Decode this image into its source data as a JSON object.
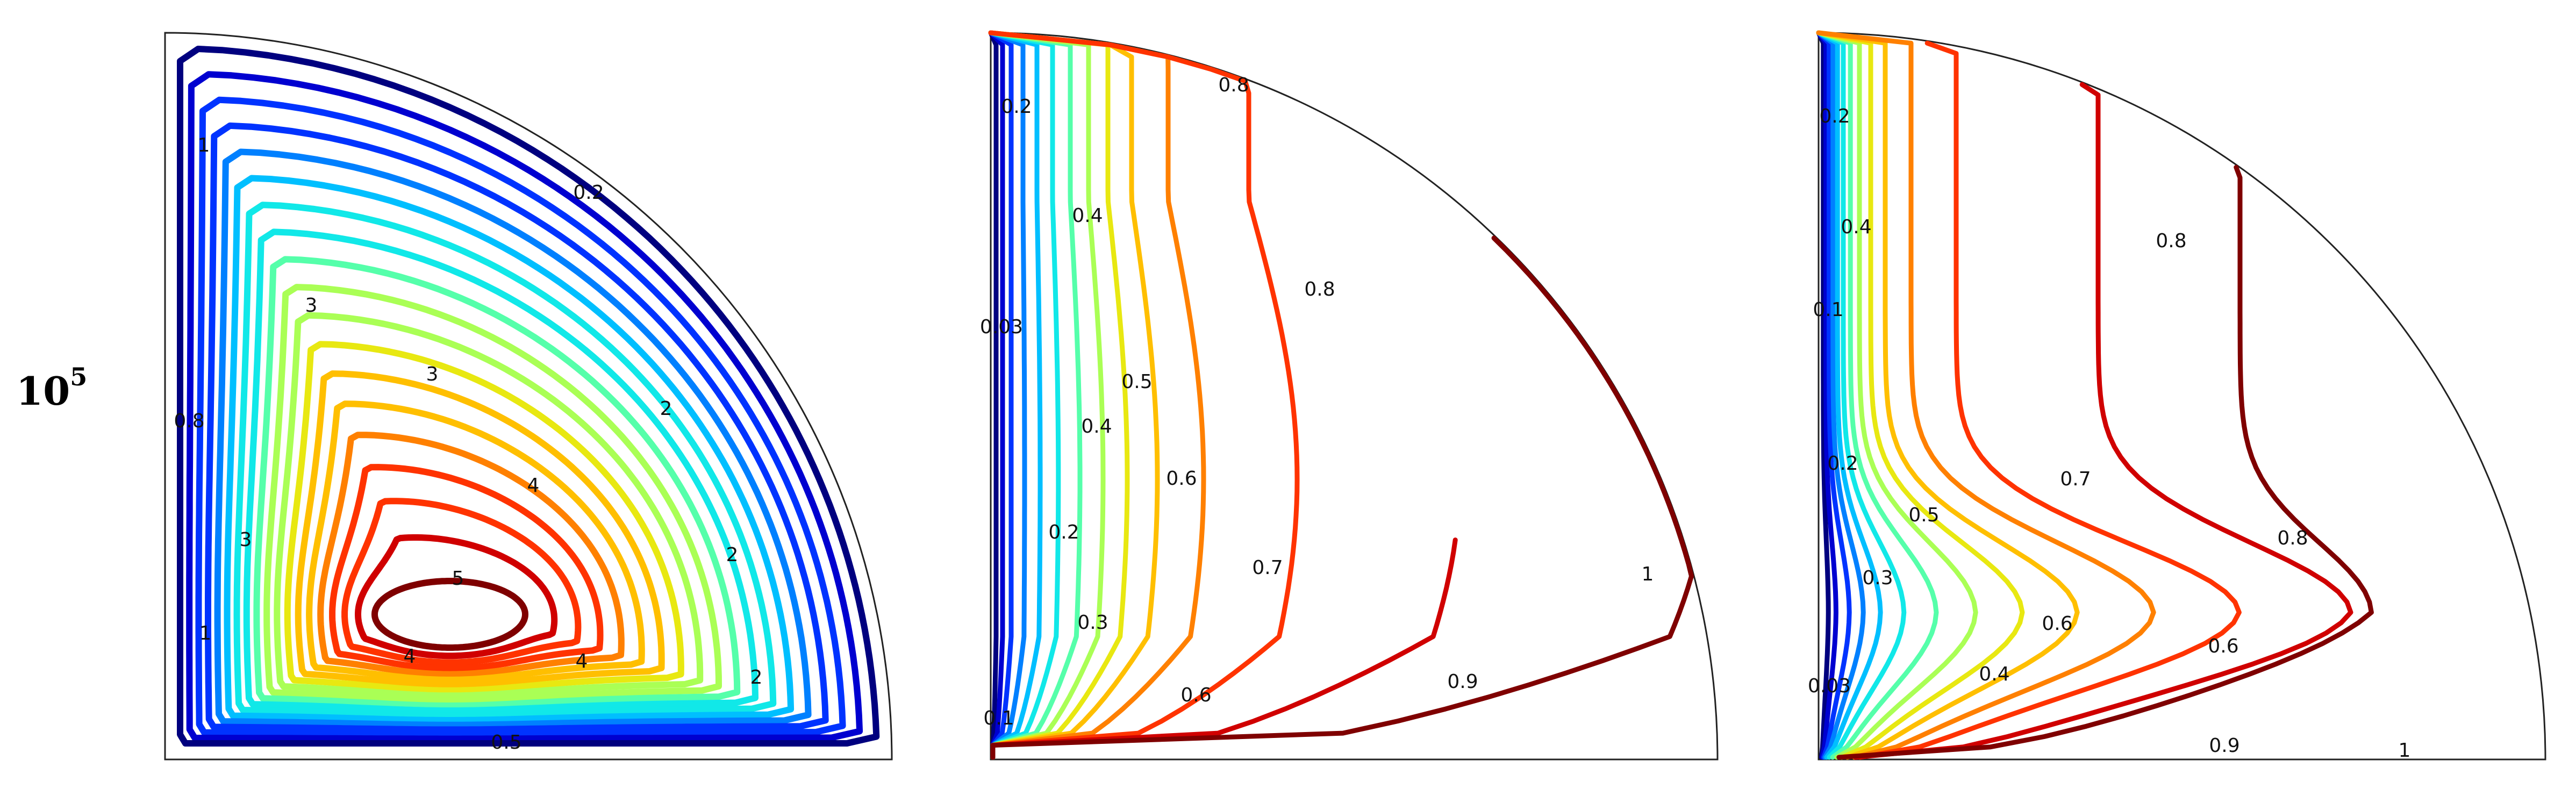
{
  "row_label": {
    "base": "10",
    "exponent": "5"
  },
  "panels": [
    {
      "id": "streamlines",
      "labels": [
        "1",
        "0.2",
        "3",
        "3",
        "2",
        "0.8",
        "4",
        "3",
        "2",
        "5",
        "1",
        "4",
        "4",
        "2",
        "0.5"
      ]
    },
    {
      "id": "isotherms",
      "labels": [
        "0.2",
        "0.8",
        "0.4",
        "0.8",
        "0.03",
        "0.5",
        "0.4",
        "0.6",
        "0.2",
        "0.7",
        "1",
        "0.3",
        "0.9",
        "0.6",
        "0.1"
      ]
    },
    {
      "id": "isotherms-2",
      "labels": [
        "0.2",
        "0.4",
        "0.8",
        "0.1",
        "0.7",
        "0.2",
        "0.8",
        "0.5",
        "0.3",
        "0.6",
        "0.6",
        "0.4",
        "0.03",
        "0.9",
        "1"
      ]
    }
  ],
  "colors": {
    "jet": [
      "#00007f",
      "#0000d0",
      "#0033ff",
      "#0080ff",
      "#00bfff",
      "#11e8e8",
      "#55ffaa",
      "#aaff55",
      "#e8e811",
      "#ffbf00",
      "#ff8000",
      "#ff3300",
      "#d00000",
      "#7f0000"
    ]
  }
}
